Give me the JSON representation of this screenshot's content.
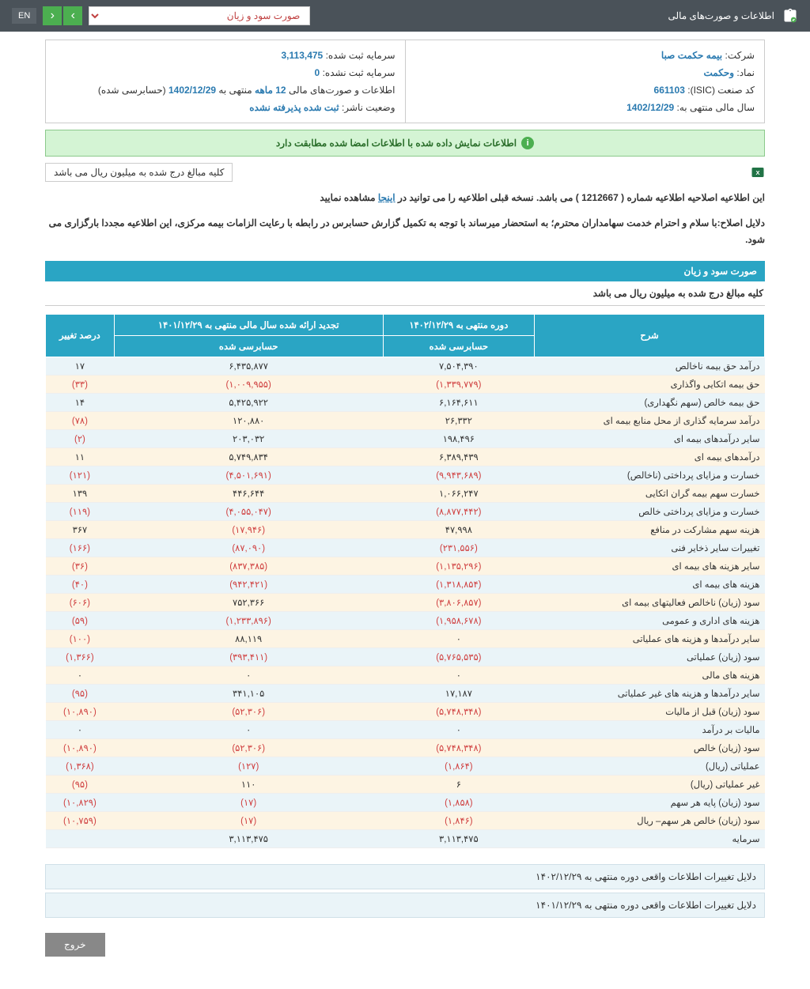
{
  "topbar": {
    "title": "اطلاعات و صورت‌های مالی",
    "dropdown": "صورت سود و زیان",
    "lang": "EN"
  },
  "info": {
    "company_label": "شرکت:",
    "company": "بیمه حکمت صبا",
    "symbol_label": "نماد:",
    "symbol": "وحکمت",
    "isic_label": "کد صنعت (ISIC):",
    "isic": "661103",
    "fiscal_label": "سال مالی منتهی به:",
    "fiscal": "1402/12/29",
    "capital_reg_label": "سرمایه ثبت شده:",
    "capital_reg": "3,113,475",
    "capital_unreg_label": "سرمایه ثبت نشده:",
    "capital_unreg": "0",
    "period_label": "اطلاعات و صورت‌های مالی",
    "period_months": "12 ماهه",
    "period_end_pre": "منتهی به",
    "period_end": "1402/12/29",
    "period_status": "(حسابرسی شده)",
    "publisher_label": "وضعیت ناشر:",
    "publisher_status": "ثبت شده پذیرفته نشده"
  },
  "alert": "اطلاعات نمایش داده شده با اطلاعات امضا شده مطابقت دارد",
  "notice_box": "کلیه مبالغ درج شده به میلیون ریال می باشد",
  "para1_a": "این اطلاعیه اصلاحیه اطلاعیه شماره ( 1212667 ) می باشد. نسخه قبلی اطلاعیه را می توانید در ",
  "para1_link": "اینجا",
  "para1_b": " مشاهده نمایید",
  "para2": "دلایل اصلاح:با سلام و احترام خدمت سهامداران محترم؛ به استحضار میرساند با توجه به تکمیل گزارش حسابرس در رابطه با رعایت الزامات بیمه مرکزی، این اطلاعیه مجددا بارگزاری می شود.",
  "section_title": "صورت سود و زیان",
  "section_sub": "کلیه مبالغ درج شده به میلیون ریال می باشد",
  "headers": {
    "desc": "شرح",
    "period1": "دوره منتهی به ۱۴۰۲/۱۲/۲۹",
    "period2": "تجدید ارائه شده سال مالی منتهی به ۱۴۰۱/۱۲/۲۹",
    "change": "درصد تغییر",
    "audited": "حسابرسی شده"
  },
  "rows": [
    {
      "d": "درآمد حق بیمه ناخالص",
      "v1": "۷,۵۰۴,۳۹۰",
      "v2": "۶,۴۳۵,۸۷۷",
      "c": "۱۷",
      "n1": false,
      "n2": false,
      "nc": false
    },
    {
      "d": "حق بیمه اتکایی واگذاری",
      "v1": "(۱,۳۳۹,۷۷۹)",
      "v2": "(۱,۰۰۹,۹۵۵)",
      "c": "(۳۳)",
      "n1": true,
      "n2": true,
      "nc": true
    },
    {
      "d": "حق بیمه خالص (سهم نگهداری)",
      "v1": "۶,۱۶۴,۶۱۱",
      "v2": "۵,۴۲۵,۹۲۲",
      "c": "۱۴",
      "n1": false,
      "n2": false,
      "nc": false
    },
    {
      "d": "درآمد سرمایه گذاری از محل منابع بیمه ای",
      "v1": "۲۶,۳۳۲",
      "v2": "۱۲۰,۸۸۰",
      "c": "(۷۸)",
      "n1": false,
      "n2": false,
      "nc": true
    },
    {
      "d": "سایر درآمدهای بیمه ای",
      "v1": "۱۹۸,۴۹۶",
      "v2": "۲۰۳,۰۳۲",
      "c": "(۲)",
      "n1": false,
      "n2": false,
      "nc": true
    },
    {
      "d": "درآمدهای بیمه ای",
      "v1": "۶,۳۸۹,۴۳۹",
      "v2": "۵,۷۴۹,۸۳۴",
      "c": "۱۱",
      "n1": false,
      "n2": false,
      "nc": false
    },
    {
      "d": "خسارت و مزایای پرداختی (ناخالص)",
      "v1": "(۹,۹۴۳,۶۸۹)",
      "v2": "(۴,۵۰۱,۶۹۱)",
      "c": "(۱۲۱)",
      "n1": true,
      "n2": true,
      "nc": true
    },
    {
      "d": "خسارت سهم بیمه گران اتکایی",
      "v1": "۱,۰۶۶,۲۴۷",
      "v2": "۴۴۶,۶۴۴",
      "c": "۱۳۹",
      "n1": false,
      "n2": false,
      "nc": false
    },
    {
      "d": "خسارت و مزایای پرداختی خالص",
      "v1": "(۸,۸۷۷,۴۴۲)",
      "v2": "(۴,۰۵۵,۰۴۷)",
      "c": "(۱۱۹)",
      "n1": true,
      "n2": true,
      "nc": true
    },
    {
      "d": "هزینه سهم مشارکت در منافع",
      "v1": "۴۷,۹۹۸",
      "v2": "(۱۷,۹۴۶)",
      "c": "۳۶۷",
      "n1": false,
      "n2": true,
      "nc": false
    },
    {
      "d": "تغییرات سایر ذخایر فنی",
      "v1": "(۲۳۱,۵۵۶)",
      "v2": "(۸۷,۰۹۰)",
      "c": "(۱۶۶)",
      "n1": true,
      "n2": true,
      "nc": true
    },
    {
      "d": "سایر هزینه های بیمه ای",
      "v1": "(۱,۱۳۵,۲۹۶)",
      "v2": "(۸۳۷,۳۸۵)",
      "c": "(۳۶)",
      "n1": true,
      "n2": true,
      "nc": true
    },
    {
      "d": "هزینه های بیمه ای",
      "v1": "(۱,۳۱۸,۸۵۴)",
      "v2": "(۹۴۲,۴۲۱)",
      "c": "(۴۰)",
      "n1": true,
      "n2": true,
      "nc": true
    },
    {
      "d": "سود (زیان) ناخالص فعالیتهای بیمه ای",
      "v1": "(۳,۸۰۶,۸۵۷)",
      "v2": "۷۵۲,۳۶۶",
      "c": "(۶۰۶)",
      "n1": true,
      "n2": false,
      "nc": true
    },
    {
      "d": "هزینه های اداری و عمومی",
      "v1": "(۱,۹۵۸,۶۷۸)",
      "v2": "(۱,۲۳۳,۸۹۶)",
      "c": "(۵۹)",
      "n1": true,
      "n2": true,
      "nc": true
    },
    {
      "d": "سایر درآمدها و هزینه های عملیاتی",
      "v1": "۰",
      "v2": "۸۸,۱۱۹",
      "c": "(۱۰۰)",
      "n1": false,
      "n2": false,
      "nc": true
    },
    {
      "d": "سود (زیان) عملیاتی",
      "v1": "(۵,۷۶۵,۵۳۵)",
      "v2": "(۳۹۳,۴۱۱)",
      "c": "(۱,۳۶۶)",
      "n1": true,
      "n2": true,
      "nc": true
    },
    {
      "d": "هزینه های مالی",
      "v1": "۰",
      "v2": "۰",
      "c": "۰",
      "n1": false,
      "n2": false,
      "nc": false
    },
    {
      "d": "سایر درآمدها و هزینه های غیر عملیاتی",
      "v1": "۱۷,۱۸۷",
      "v2": "۳۴۱,۱۰۵",
      "c": "(۹۵)",
      "n1": false,
      "n2": false,
      "nc": true
    },
    {
      "d": "سود (زیان) قبل از مالیات",
      "v1": "(۵,۷۴۸,۳۴۸)",
      "v2": "(۵۲,۳۰۶)",
      "c": "(۱۰,۸۹۰)",
      "n1": true,
      "n2": true,
      "nc": true
    },
    {
      "d": "مالیات بر درآمد",
      "v1": "۰",
      "v2": "۰",
      "c": "۰",
      "n1": false,
      "n2": false,
      "nc": false
    },
    {
      "d": "سود (زیان) خالص",
      "v1": "(۵,۷۴۸,۳۴۸)",
      "v2": "(۵۲,۳۰۶)",
      "c": "(۱۰,۸۹۰)",
      "n1": true,
      "n2": true,
      "nc": true
    },
    {
      "d": "عملیاتی (ریال)",
      "v1": "(۱,۸۶۴)",
      "v2": "(۱۲۷)",
      "c": "(۱,۳۶۸)",
      "n1": true,
      "n2": true,
      "nc": true
    },
    {
      "d": "غیر عملیاتی (ریال)",
      "v1": "۶",
      "v2": "۱۱۰",
      "c": "(۹۵)",
      "n1": false,
      "n2": false,
      "nc": true
    },
    {
      "d": "سود (زیان) پایه هر سهم",
      "v1": "(۱,۸۵۸)",
      "v2": "(۱۷)",
      "c": "(۱۰,۸۲۹)",
      "n1": true,
      "n2": true,
      "nc": true
    },
    {
      "d": "سود (زیان) خالص هر سهم– ریال",
      "v1": "(۱,۸۴۶)",
      "v2": "(۱۷)",
      "c": "(۱۰,۷۵۹)",
      "n1": true,
      "n2": true,
      "nc": true
    },
    {
      "d": "سرمایه",
      "v1": "۳,۱۱۳,۴۷۵",
      "v2": "۳,۱۱۳,۴۷۵",
      "c": "",
      "n1": false,
      "n2": false,
      "nc": false
    }
  ],
  "footer1": "دلایل تغییرات اطلاعات واقعی دوره منتهی به ۱۴۰۲/۱۲/۲۹",
  "footer2": "دلایل تغییرات اطلاعات واقعی دوره منتهی به ۱۴۰۱/۱۲/۲۹",
  "exit": "خروج"
}
